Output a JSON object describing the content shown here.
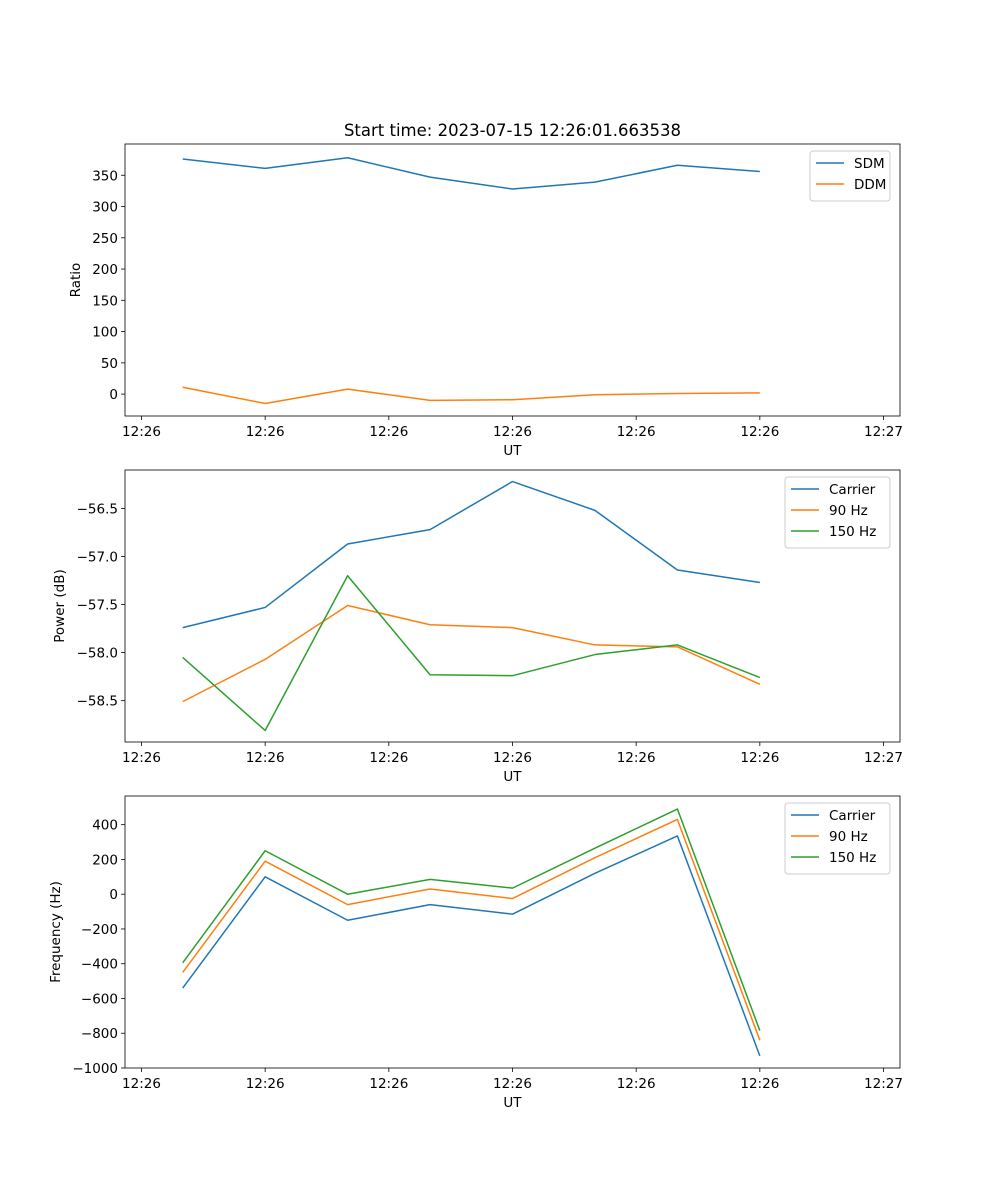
{
  "figure": {
    "title": "Start time: 2023-07-15 12:26:01.663538",
    "xlabel": "UT",
    "xtick_labels": [
      "12:26",
      "12:26",
      "12:26",
      "12:26",
      "12:26",
      "12:26",
      "12:26",
      "12:27"
    ]
  },
  "chart_data": [
    {
      "type": "line",
      "title": "Start time: 2023-07-15 12:26:01.663538",
      "xlabel": "UT",
      "ylabel": "Ratio",
      "x": [
        0.5,
        1.5,
        2.5,
        3.5,
        4.5,
        5.5,
        6.5,
        7.5
      ],
      "xlim": [
        -0.2,
        9.2
      ],
      "xticks": [
        0,
        1.5,
        3,
        4.5,
        6,
        7.5,
        9
      ],
      "xtick_labels": [
        "12:26",
        "12:26",
        "12:26",
        "12:26",
        "12:26",
        "12:26",
        "12:27"
      ],
      "ylim": [
        -35,
        400
      ],
      "yticks": [
        0,
        50,
        100,
        150,
        200,
        250,
        300,
        350
      ],
      "ytick_labels": [
        "0",
        "50",
        "100",
        "150",
        "200",
        "250",
        "300",
        "350"
      ],
      "legend_position": "top-right",
      "series": [
        {
          "name": "SDM",
          "color": "#1f77b4",
          "values": [
            376,
            361,
            378,
            347,
            328,
            339,
            366,
            356
          ]
        },
        {
          "name": "DDM",
          "color": "#ff7f0e",
          "values": [
            11,
            -15,
            8,
            -10,
            -9,
            -1,
            1,
            2
          ]
        }
      ]
    },
    {
      "type": "line",
      "title": "",
      "xlabel": "UT",
      "ylabel": "Power (dB)",
      "x": [
        0.5,
        1.5,
        2.5,
        3.5,
        4.5,
        5.5,
        6.5,
        7.5
      ],
      "xlim": [
        -0.2,
        9.2
      ],
      "xticks": [
        0,
        1.5,
        3,
        4.5,
        6,
        7.5,
        9
      ],
      "xtick_labels": [
        "12:26",
        "12:26",
        "12:26",
        "12:26",
        "12:26",
        "12:26",
        "12:27"
      ],
      "ylim": [
        -58.93,
        -56.1
      ],
      "yticks": [
        -58.5,
        -58.0,
        -57.5,
        -57.0,
        -56.5
      ],
      "ytick_labels": [
        "−58.5",
        "−58.0",
        "−57.5",
        "−57.0",
        "−56.5"
      ],
      "legend_position": "top-right",
      "series": [
        {
          "name": "Carrier",
          "color": "#1f77b4",
          "values": [
            -57.74,
            -57.53,
            -56.87,
            -56.72,
            -56.22,
            -56.52,
            -57.14,
            -57.27
          ]
        },
        {
          "name": "90 Hz",
          "color": "#ff7f0e",
          "values": [
            -58.51,
            -58.07,
            -57.51,
            -57.71,
            -57.74,
            -57.92,
            -57.94,
            -58.33
          ]
        },
        {
          "name": "150 Hz",
          "color": "#2ca02c",
          "values": [
            -58.05,
            -58.81,
            -57.2,
            -58.23,
            -58.24,
            -58.02,
            -57.92,
            -58.26
          ]
        }
      ]
    },
    {
      "type": "line",
      "title": "",
      "xlabel": "UT",
      "ylabel": "Frequency (Hz)",
      "x": [
        0.5,
        1.5,
        2.5,
        3.5,
        4.5,
        5.5,
        6.5,
        7.5
      ],
      "xlim": [
        -0.2,
        9.2
      ],
      "xticks": [
        0,
        1.5,
        3,
        4.5,
        6,
        7.5,
        9
      ],
      "xtick_labels": [
        "12:26",
        "12:26",
        "12:26",
        "12:26",
        "12:26",
        "12:26",
        "12:27"
      ],
      "ylim": [
        -1000,
        565
      ],
      "yticks": [
        -1000,
        -800,
        -600,
        -400,
        -200,
        0,
        200,
        400
      ],
      "ytick_labels": [
        "−1000",
        "−800",
        "−600",
        "−400",
        "−200",
        "0",
        "200",
        "400"
      ],
      "legend_position": "top-right",
      "series": [
        {
          "name": "Carrier",
          "color": "#1f77b4",
          "values": [
            -540,
            100,
            -150,
            -60,
            -115,
            120,
            335,
            -930
          ]
        },
        {
          "name": "90 Hz",
          "color": "#ff7f0e",
          "values": [
            -450,
            190,
            -60,
            30,
            -25,
            210,
            430,
            -840
          ]
        },
        {
          "name": "150 Hz",
          "color": "#2ca02c",
          "values": [
            -395,
            250,
            0,
            85,
            35,
            265,
            490,
            -785
          ]
        }
      ]
    }
  ]
}
